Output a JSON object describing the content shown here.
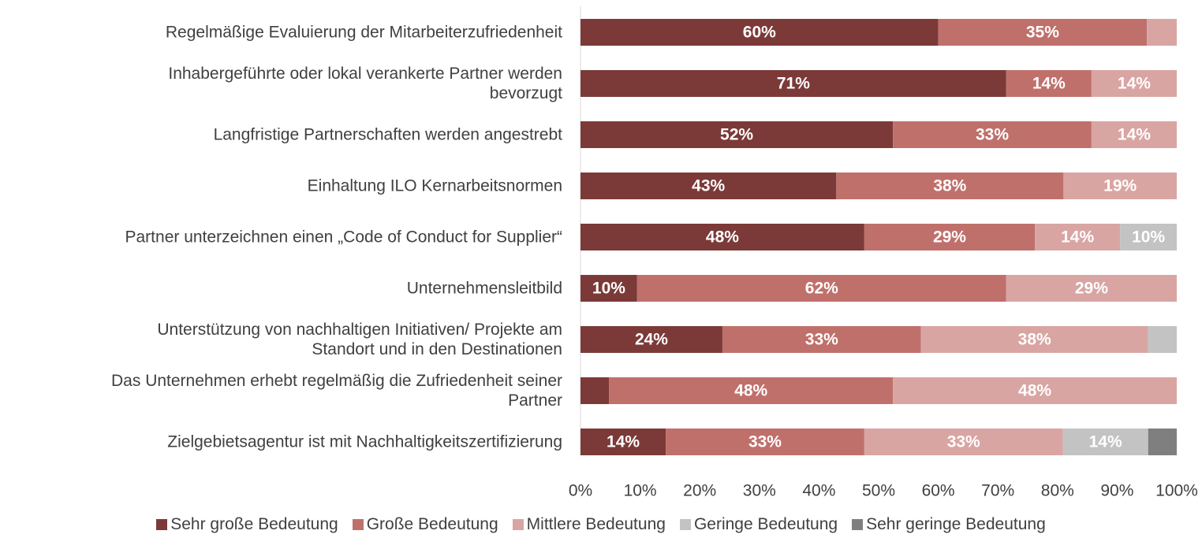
{
  "chart_data": {
    "type": "stacked_bar_horizontal",
    "categories": [
      "Regelmäßige Evaluierung der Mitarbeiterzufriedenheit",
      "Inhabergeführte oder lokal verankerte Partner werden\nbevorzugt",
      "Langfristige Partnerschaften werden angestrebt",
      "Einhaltung ILO Kernarbeitsnormen",
      "Partner unterzeichnen einen „Code of Conduct for Supplier“",
      "Unternehmensleitbild",
      "Unterstützung von nachhaltigen Initiativen/ Projekte am\nStandort und in den Destinationen",
      "Das Unternehmen erhebt regelmäßig die Zufriedenheit seiner\nPartner",
      "Zielgebietsagentur ist mit Nachhaltigkeitszertifizierung"
    ],
    "series": [
      {
        "name": "Sehr große Bedeutung",
        "color": "#7b3a38",
        "values": [
          60,
          71.4,
          52.4,
          42.9,
          47.6,
          9.5,
          23.8,
          4.8,
          14.3
        ],
        "value_labels": [
          "60%",
          "71%",
          "52%",
          "43%",
          "48%",
          "10%",
          "24%",
          null,
          "14%"
        ]
      },
      {
        "name": "Große Bedeutung",
        "color": "#c0706b",
        "values": [
          35,
          14.3,
          33.3,
          38.1,
          28.6,
          61.9,
          33.3,
          47.6,
          33.3
        ],
        "value_labels": [
          "35%",
          "14%",
          "33%",
          "38%",
          "29%",
          "62%",
          "33%",
          "48%",
          "33%"
        ]
      },
      {
        "name": "Mittlere Bedeutung",
        "color": "#d9a5a3",
        "values": [
          5,
          14.3,
          14.3,
          19.0,
          14.3,
          28.6,
          38.1,
          47.6,
          33.3
        ],
        "value_labels": [
          null,
          "14%",
          "14%",
          "19%",
          "14%",
          "29%",
          "38%",
          "48%",
          "33%"
        ]
      },
      {
        "name": "Geringe Bedeutung",
        "color": "#c3c3c3",
        "values": [
          0,
          0,
          0,
          0,
          9.5,
          0,
          4.8,
          0,
          14.3
        ],
        "value_labels": [
          null,
          null,
          null,
          null,
          "10%",
          null,
          null,
          null,
          "14%"
        ]
      },
      {
        "name": "Sehr geringe Bedeutung",
        "color": "#7f7f7f",
        "values": [
          0,
          0,
          0,
          0,
          0,
          0,
          0,
          0,
          4.8
        ],
        "value_labels": [
          null,
          null,
          null,
          null,
          null,
          null,
          null,
          null,
          null
        ]
      }
    ],
    "xlim": [
      0,
      100
    ],
    "xticks": [
      {
        "value": 0,
        "label": "0%"
      },
      {
        "value": 10,
        "label": "10%"
      },
      {
        "value": 20,
        "label": "20%"
      },
      {
        "value": 30,
        "label": "30%"
      },
      {
        "value": 40,
        "label": "40%"
      },
      {
        "value": 50,
        "label": "50%"
      },
      {
        "value": 60,
        "label": "60%"
      },
      {
        "value": 70,
        "label": "70%"
      },
      {
        "value": 80,
        "label": "80%"
      },
      {
        "value": 90,
        "label": "90%"
      },
      {
        "value": 100,
        "label": "100%"
      }
    ],
    "legend": "bottom"
  }
}
